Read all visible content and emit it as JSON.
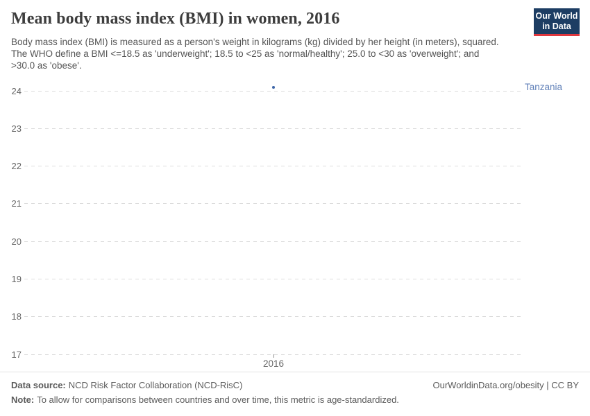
{
  "header": {
    "title": "Mean body mass index (BMI) in women, 2016",
    "subtitle": "Body mass index (BMI) is measured as a person's weight in kilograms (kg) divided by her height (in meters), squared. The WHO define a BMI <=18.5 as 'underweight'; 18.5 to <25 as 'normal/healthy'; 25.0 to <30 as 'overweight'; and >30.0 as 'obese'.",
    "logo": {
      "line1": "Our World",
      "line2": "in Data",
      "bg_color": "#1d3d63",
      "bar_color": "#e0373e"
    }
  },
  "chart_data": {
    "type": "scatter",
    "title": "Mean body mass index (BMI) in women, 2016",
    "x": [
      2016
    ],
    "series": [
      {
        "name": "Tanzania",
        "values": [
          24.1
        ],
        "point_color": "#3e66a8",
        "label_color": "#6080b8"
      }
    ],
    "xlabel": "",
    "ylabel": "",
    "ylim": [
      17,
      24
    ],
    "yticks": [
      17,
      18,
      19,
      20,
      21,
      22,
      23,
      24
    ],
    "xticks": [
      "2016"
    ],
    "grid": "horizontal-dashed",
    "legend_position": "entity label right of plot"
  },
  "footer": {
    "datasource_label": "Data source:",
    "datasource_value": "NCD Risk Factor Collaboration (NCD-RisC)",
    "note_label": "Note:",
    "note_value": "To allow for comparisons between countries and over time, this metric is age-standardized.",
    "rights": "OurWorldinData.org/obesity | CC BY"
  }
}
